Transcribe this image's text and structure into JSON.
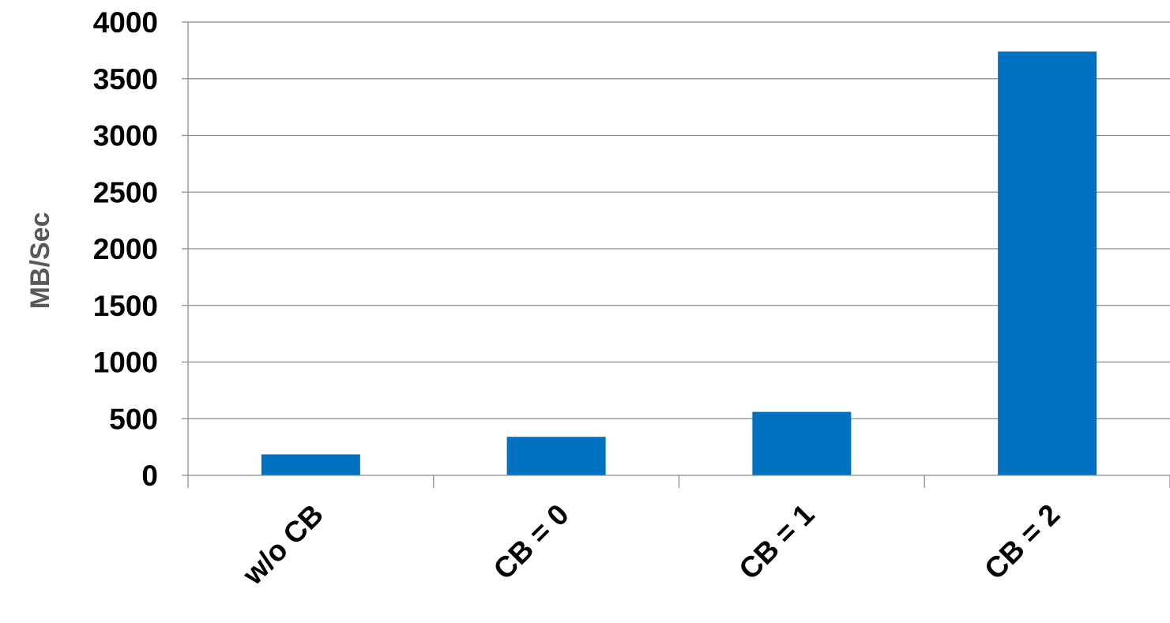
{
  "chart_data": {
    "type": "bar",
    "title": "",
    "xlabel": "",
    "ylabel": "MB/Sec",
    "categories": [
      "w/o CB",
      "CB = 0",
      "CB = 1",
      "CB = 2"
    ],
    "values": [
      185,
      340,
      560,
      3740
    ],
    "ylim": [
      0,
      4000
    ],
    "yticks": [
      0,
      500,
      1000,
      1500,
      2000,
      2500,
      3000,
      3500,
      4000
    ],
    "y_tick_labels": [
      "0",
      "500",
      "1000",
      "1500",
      "2000",
      "2500",
      "3000",
      "3500",
      "4000"
    ],
    "grid": true,
    "legend": "none",
    "bar_color": "#0070C0"
  }
}
